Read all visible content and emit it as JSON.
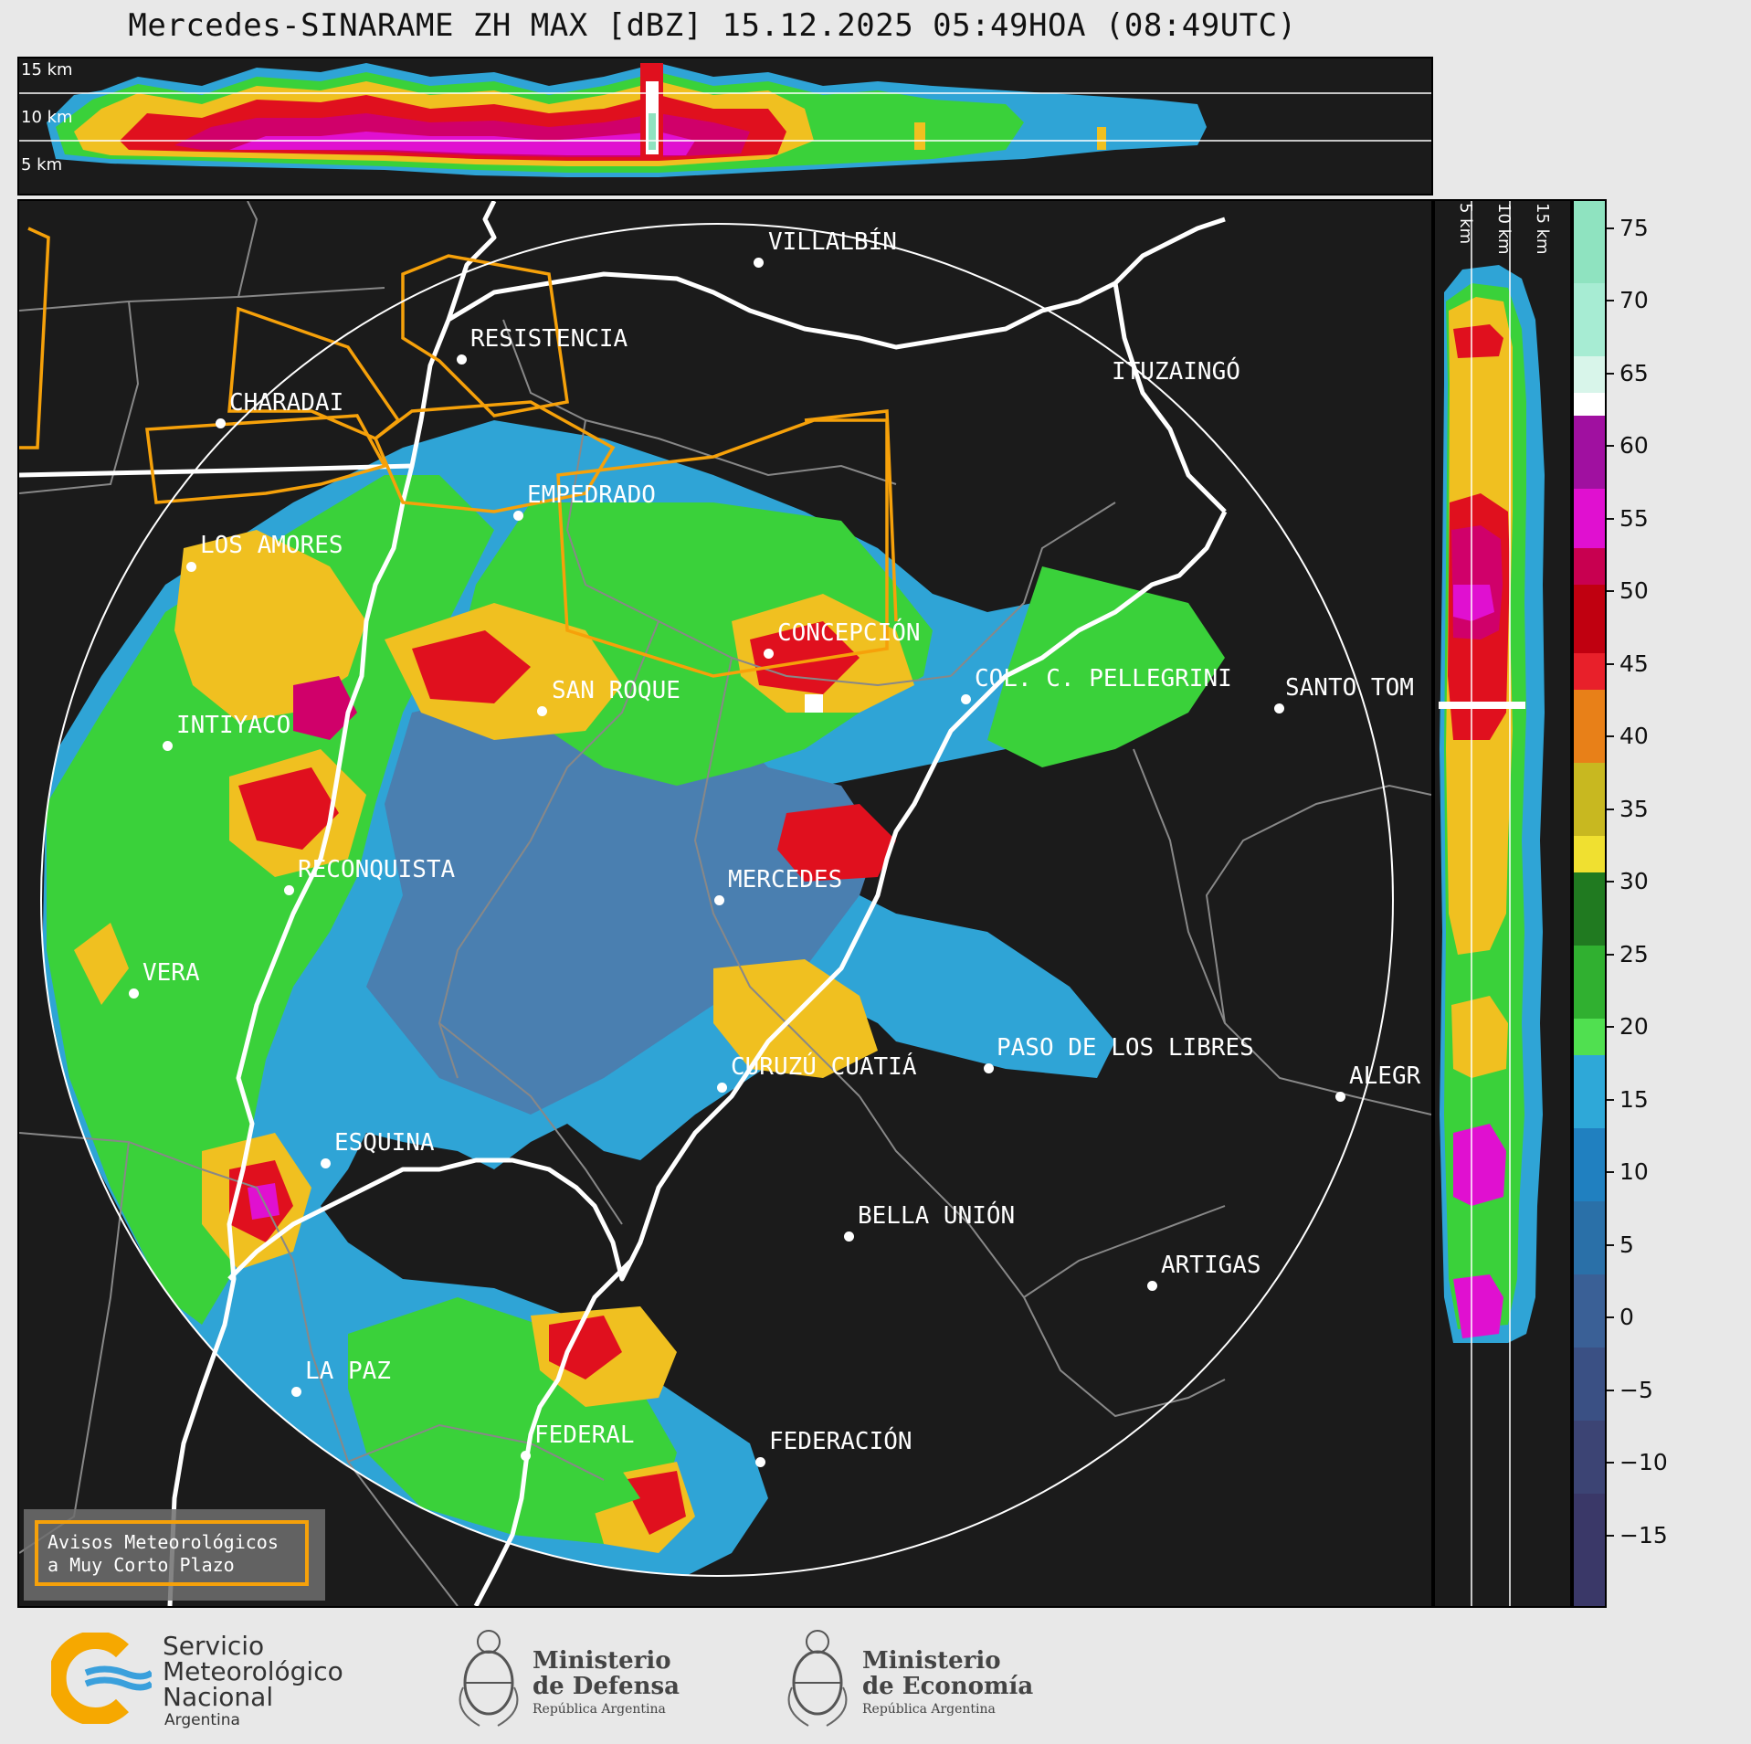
{
  "header": {
    "title": "Mercedes-SINARAME ZH MAX [dBZ] 15.12.2025 05:49HOA (08:49UTC)"
  },
  "top_panel": {
    "altitude_labels": [
      "15 km",
      "10 km",
      "5 km"
    ]
  },
  "right_panel": {
    "altitude_labels": [
      "5 km",
      "10 km",
      "15 km"
    ]
  },
  "colorbar": {
    "unit": "dBZ",
    "ticks": [
      "75",
      "70",
      "65",
      "60",
      "55",
      "50",
      "45",
      "40",
      "35",
      "30",
      "25",
      "20",
      "15",
      "10",
      "5",
      "0",
      "−5",
      "−10",
      "−15"
    ],
    "min": -20,
    "max": 77
  },
  "map": {
    "cities": [
      "VILLALBÍN",
      "RESISTENCIA",
      "ITUZAINGÓ",
      "CHARADAI",
      "EMPEDRADO",
      "LOS AMORES",
      "CONCEPCIÓN",
      "COL. C. PELLEGRINI",
      "SANTO TOM",
      "SAN ROQUE",
      "INTIYACO",
      "RECONQUISTA",
      "MERCEDES",
      "VERA",
      "CURUZÚ CUATIÁ",
      "PASO DE LOS LIBRES",
      "ALEGR",
      "ESQUINA",
      "BELLA UNIÓN",
      "ARTIGAS",
      "LA PAZ",
      "FEDERAL",
      "FEDERACIÓN"
    ]
  },
  "warning_box": {
    "line1": "Avisos Meteorológicos",
    "line2": "a Muy Corto Plazo"
  },
  "footer": {
    "smn": {
      "line1": "Servicio",
      "line2": "Meteorológico",
      "line3": "Nacional",
      "line4": "Argentina"
    },
    "defensa": {
      "line1": "Ministerio",
      "line2": "de Defensa",
      "line3": "República Argentina"
    },
    "economia": {
      "line1": "Ministerio",
      "line2": "de Economía",
      "line3": "República Argentina"
    }
  },
  "colors": {
    "ring": "#ffffff",
    "warning_polygon": "#f6a10a",
    "background": "#1b1b1b"
  }
}
